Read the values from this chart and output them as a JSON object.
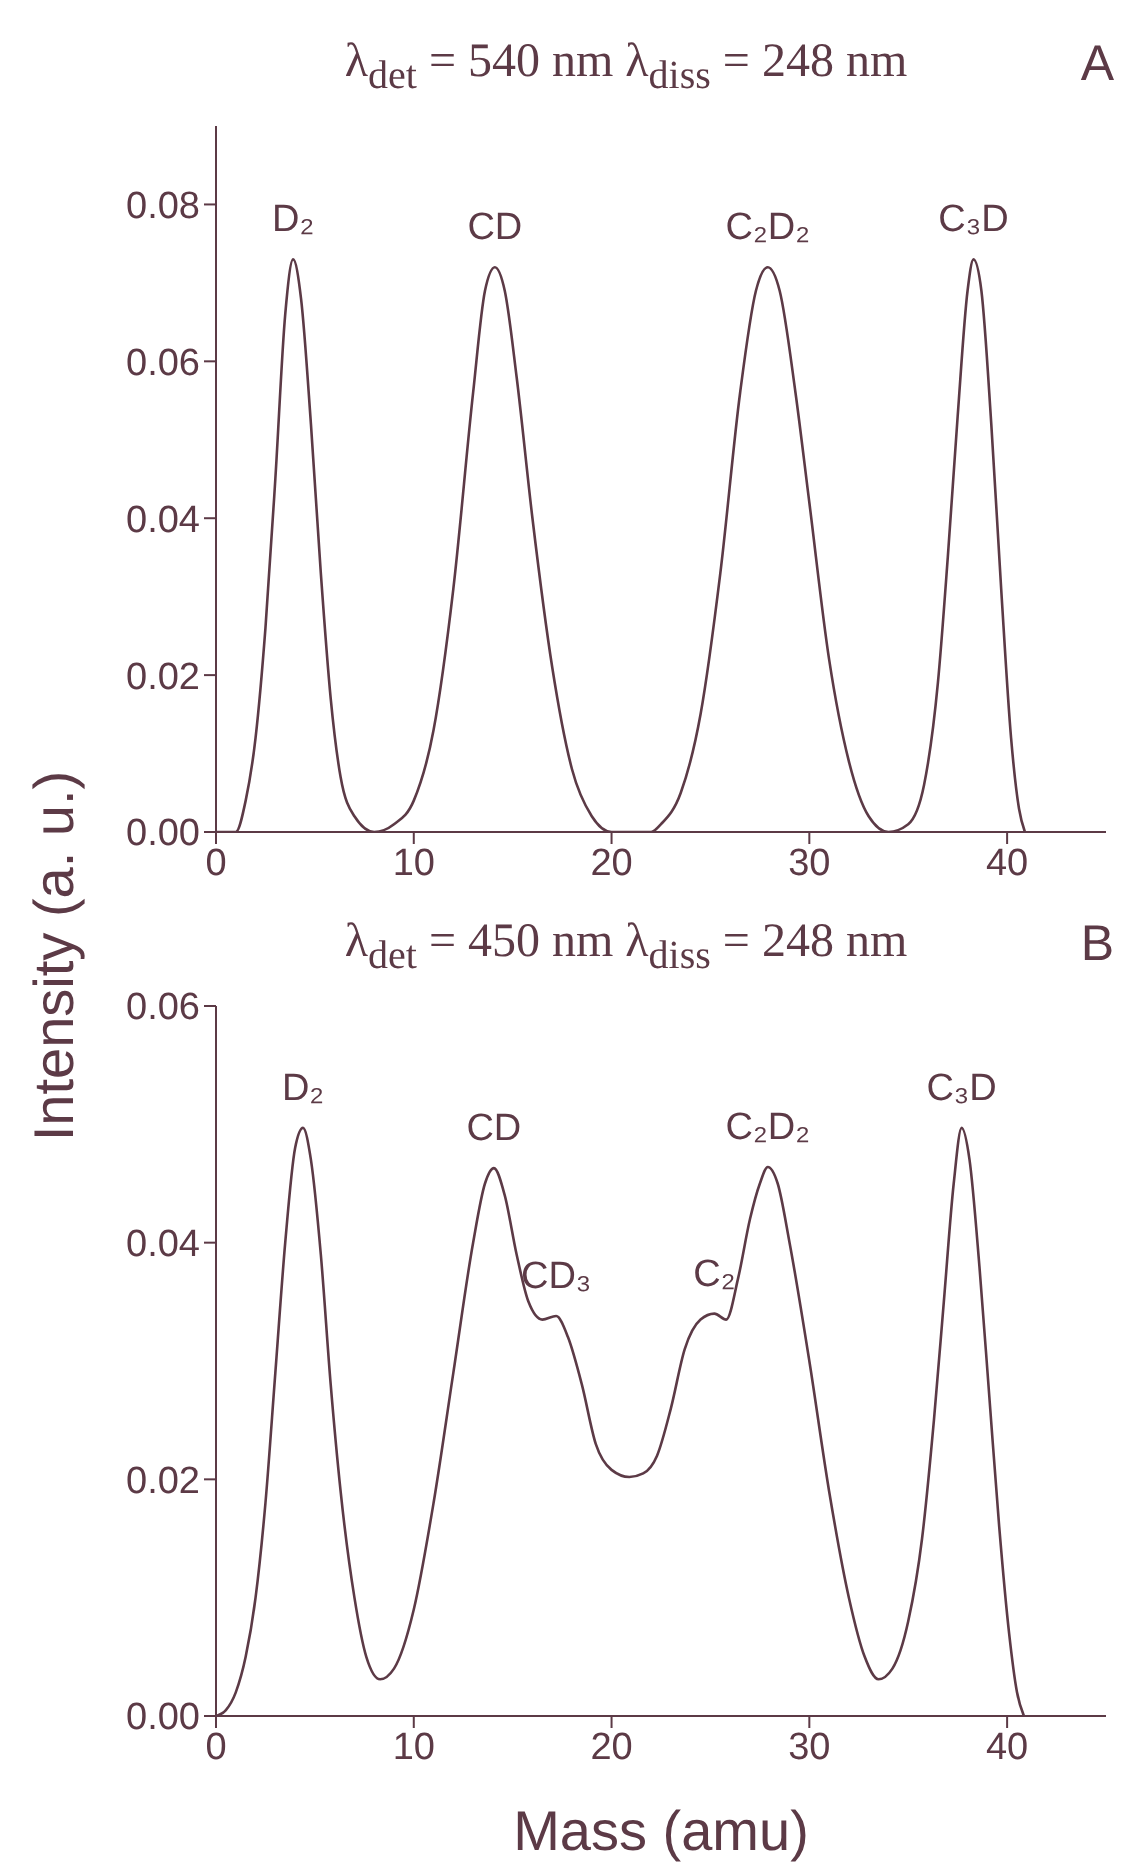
{
  "chart_data": [
    {
      "type": "line",
      "title": "λ$_{det}$ = 540 nm  λ$_{diss}$ = 248 nm",
      "x": [
        0,
        1,
        1.5,
        2,
        2.5,
        3,
        3.5,
        3.9,
        4.3,
        4.8,
        5.3,
        5.8,
        6.3,
        7,
        8,
        9,
        10,
        11,
        12,
        13,
        13.6,
        14.1,
        14.6,
        15.2,
        16,
        17,
        18,
        19,
        20,
        21,
        22,
        22.5,
        23.5,
        24.5,
        25.5,
        26.5,
        27.3,
        27.9,
        28.5,
        29.3,
        30,
        31,
        32,
        33,
        34,
        35,
        35.8,
        36.5,
        37,
        37.5,
        38,
        38.3,
        38.7,
        39.2,
        39.7,
        40.2,
        40.6,
        40.9
      ],
      "series": [
        {
          "color": "#5c3a46",
          "values": [
            0,
            0,
            0.004,
            0.012,
            0.026,
            0.045,
            0.066,
            0.073,
            0.068,
            0.052,
            0.033,
            0.017,
            0.007,
            0.002,
            0,
            0.001,
            0.004,
            0.013,
            0.031,
            0.056,
            0.069,
            0.072,
            0.069,
            0.058,
            0.04,
            0.021,
            0.008,
            0.002,
            0,
            0,
            0,
            0.001,
            0.005,
            0.015,
            0.033,
            0.056,
            0.069,
            0.072,
            0.069,
            0.056,
            0.042,
            0.022,
            0.009,
            0.002,
            0,
            0.001,
            0.006,
            0.019,
            0.035,
            0.053,
            0.069,
            0.073,
            0.069,
            0.052,
            0.031,
            0.012,
            0.003,
            0
          ]
        }
      ],
      "xlim": [
        0,
        45
      ],
      "xticks": [
        0,
        10,
        20,
        30,
        40
      ],
      "ylim": [
        0,
        0.09
      ],
      "yticks": [
        {
          "value": 0,
          "label": "0.00"
        },
        0.02,
        0.04,
        0.06,
        0.08
      ],
      "grid": false,
      "legend": false,
      "marker": "none",
      "line_style": "solid",
      "annotations": [
        "A",
        {
          "text": "D₂",
          "x": 3.9,
          "y": 0.073
        },
        {
          "text": "CD",
          "x": 14.1,
          "y": 0.072
        },
        {
          "text": "C₂D₂",
          "x": 27.9,
          "y": 0.072
        },
        {
          "text": "C₃D",
          "x": 38.3,
          "y": 0.073
        }
      ]
    },
    {
      "type": "line",
      "title": "λ$_{det}$ = 450 nm  λ$_{diss}$ = 248 nm",
      "xlabel": "Mass (amu)",
      "ylabel": "Intensity (a. u.)",
      "x": [
        0,
        0.5,
        1,
        1.5,
        2,
        2.5,
        3,
        3.5,
        4,
        4.4,
        4.8,
        5.3,
        5.8,
        6.3,
        7,
        7.6,
        8.3,
        9,
        10,
        11,
        12,
        13,
        13.6,
        14.05,
        14.6,
        15.2,
        15.8,
        16.5,
        17.2,
        17.8,
        18.5,
        19.2,
        20,
        20.9,
        21.6,
        22.3,
        23,
        23.7,
        24.5,
        25.2,
        25.8,
        26.4,
        27,
        27.5,
        27.9,
        28.4,
        29,
        30,
        31,
        32,
        32.8,
        33.5,
        34.2,
        35,
        35.7,
        36.3,
        36.8,
        37.3,
        37.7,
        38.1,
        38.6,
        39.1,
        39.6,
        40.1,
        40.5,
        40.85
      ],
      "series": [
        {
          "color": "#5c3a46",
          "values": [
            0,
            0.0005,
            0.002,
            0.005,
            0.01,
            0.018,
            0.029,
            0.04,
            0.048,
            0.0497,
            0.047,
            0.039,
            0.028,
            0.019,
            0.01,
            0.005,
            0.0031,
            0.004,
            0.009,
            0.018,
            0.029,
            0.04,
            0.045,
            0.0463,
            0.044,
            0.039,
            0.035,
            0.0335,
            0.0338,
            0.032,
            0.028,
            0.023,
            0.0208,
            0.0202,
            0.0205,
            0.022,
            0.026,
            0.031,
            0.0335,
            0.034,
            0.0335,
            0.037,
            0.042,
            0.045,
            0.0464,
            0.045,
            0.04,
            0.03,
            0.019,
            0.01,
            0.005,
            0.0031,
            0.004,
            0.008,
            0.015,
            0.025,
            0.035,
            0.045,
            0.0497,
            0.047,
            0.038,
            0.027,
            0.016,
            0.007,
            0.002,
            0
          ]
        }
      ],
      "xlim": [
        0,
        45
      ],
      "xticks": [
        0,
        10,
        20,
        30,
        40
      ],
      "ylim": [
        0,
        0.06
      ],
      "yticks": [
        {
          "value": 0,
          "label": "0.00"
        },
        0.02,
        0.04,
        0.06
      ],
      "grid": false,
      "legend": false,
      "marker": "none",
      "line_style": "solid",
      "annotations": [
        "B",
        {
          "text": "D₂",
          "x": 4.4,
          "y": 0.0497
        },
        {
          "text": "CD",
          "x": 14.05,
          "y": 0.0463
        },
        {
          "text": "CD₃",
          "x": 17.2,
          "y": 0.0338
        },
        {
          "text": "C₂",
          "x": 25.2,
          "y": 0.034
        },
        {
          "text": "C₂D₂",
          "x": 27.9,
          "y": 0.0464
        },
        {
          "text": "C₃D",
          "x": 37.7,
          "y": 0.0497
        }
      ]
    }
  ]
}
